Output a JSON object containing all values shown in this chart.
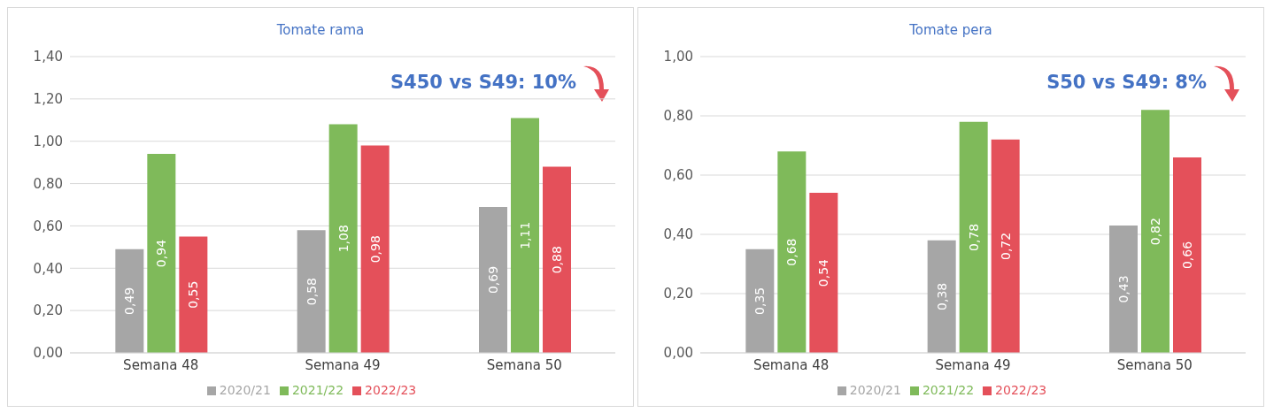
{
  "chart_data": [
    {
      "type": "bar",
      "title": "Tomate rama",
      "categories": [
        "Semana 48",
        "Semana 49",
        "Semana 50"
      ],
      "series": [
        {
          "name": "2020/21",
          "color": "#a6a6a6",
          "values": [
            0.49,
            0.58,
            0.69
          ],
          "value_labels": [
            "0,49",
            "0,58",
            "0,69"
          ]
        },
        {
          "name": "2021/22",
          "color": "#7fba5a",
          "values": [
            0.94,
            1.08,
            1.11
          ],
          "value_labels": [
            "0,94",
            "1,08",
            "1,11"
          ]
        },
        {
          "name": "2022/23",
          "color": "#e4505a",
          "values": [
            0.55,
            0.98,
            0.88
          ],
          "value_labels": [
            "0,55",
            "0,98",
            "0,88"
          ]
        }
      ],
      "ylim": [
        0,
        1.4
      ],
      "yticks": [
        {
          "value": 0,
          "label": "0,00"
        },
        {
          "value": 0.2,
          "label": "0,20"
        },
        {
          "value": 0.4,
          "label": "0,40"
        },
        {
          "value": 0.6,
          "label": "0,60"
        },
        {
          "value": 0.8,
          "label": "0,80"
        },
        {
          "value": 1,
          "label": "1,00"
        },
        {
          "value": 1.2,
          "label": "1,20"
        },
        {
          "value": 1.4,
          "label": "1,40"
        }
      ],
      "grid": "y",
      "legend": "bottom",
      "annotations": [
        "S450 vs S49: 10%"
      ]
    },
    {
      "type": "bar",
      "title": "Tomate pera",
      "categories": [
        "Semana 48",
        "Semana 49",
        "Semana 50"
      ],
      "series": [
        {
          "name": "2020/21",
          "color": "#a6a6a6",
          "values": [
            0.35,
            0.38,
            0.43
          ],
          "value_labels": [
            "0,35",
            "0,38",
            "0,43"
          ]
        },
        {
          "name": "2021/22",
          "color": "#7fba5a",
          "values": [
            0.68,
            0.78,
            0.82
          ],
          "value_labels": [
            "0,68",
            "0,78",
            "0,82"
          ]
        },
        {
          "name": "2022/23",
          "color": "#e4505a",
          "values": [
            0.54,
            0.72,
            0.66
          ],
          "value_labels": [
            "0,54",
            "0,72",
            "0,66"
          ]
        }
      ],
      "ylim": [
        0,
        1
      ],
      "yticks": [
        {
          "value": 0,
          "label": "0,00"
        },
        {
          "value": 0.2,
          "label": "0,20"
        },
        {
          "value": 0.4,
          "label": "0,40"
        },
        {
          "value": 0.6,
          "label": "0,60"
        },
        {
          "value": 0.8,
          "label": "0,80"
        },
        {
          "value": 1,
          "label": "1,00"
        }
      ],
      "grid": "y",
      "legend": "bottom",
      "annotations": [
        "S50 vs S49: 8%"
      ]
    }
  ]
}
